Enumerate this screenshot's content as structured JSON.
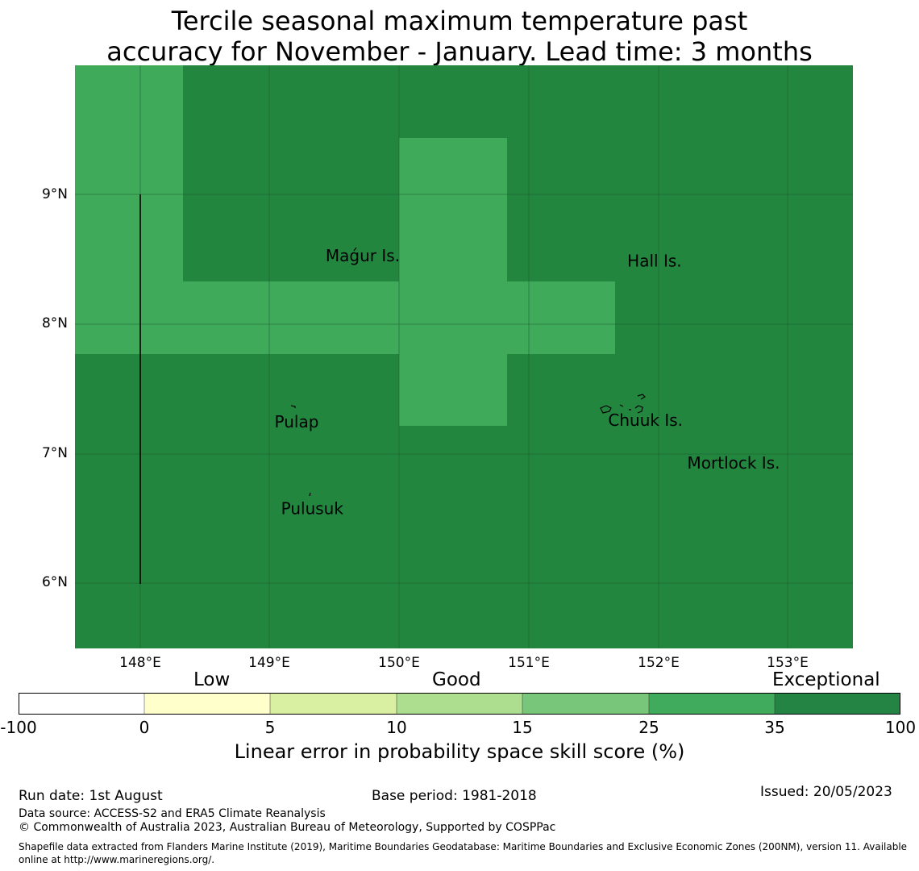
{
  "title_line1": "Tercile seasonal maximum temperature past",
  "title_line2": "accuracy for November - January. Lead time: 3 months",
  "map": {
    "lon_range": [
      147.5,
      153.5
    ],
    "lat_range": [
      5.5,
      10.0
    ],
    "colors": {
      "exceptional": "#23863f",
      "good": "#40aa5b",
      "grid": "#1a5a2c"
    },
    "y_ticks": [
      {
        "value": 9,
        "label": "9°N"
      },
      {
        "value": 8,
        "label": "8°N"
      },
      {
        "value": 7,
        "label": "7°N"
      },
      {
        "value": 6,
        "label": "6°N"
      }
    ],
    "x_ticks": [
      {
        "value": 148,
        "label": "148°E"
      },
      {
        "value": 149,
        "label": "149°E"
      },
      {
        "value": 150,
        "label": "150°E"
      },
      {
        "value": 151,
        "label": "151°E"
      },
      {
        "value": 152,
        "label": "152°E"
      },
      {
        "value": 153,
        "label": "153°E"
      }
    ],
    "places": [
      {
        "name": "Magur Is.",
        "lon": 149.72,
        "lat": 8.53
      },
      {
        "name": "Hall Is.",
        "lon": 151.97,
        "lat": 8.49
      },
      {
        "name": "Pulap",
        "lon": 149.21,
        "lat": 7.25
      },
      {
        "name": "Chuuk Is.",
        "lon": 151.9,
        "lat": 7.26
      },
      {
        "name": "Mortlock Is.",
        "lon": 152.58,
        "lat": 6.93
      },
      {
        "name": "Pulusuk",
        "lon": 149.33,
        "lat": 6.58
      }
    ]
  },
  "colorbar": {
    "categories": [
      "Low",
      "Good",
      "Exceptional"
    ],
    "ticks": [
      "-100",
      "0",
      "5",
      "10",
      "15",
      "25",
      "35",
      "100"
    ],
    "colors": [
      "#ffffff",
      "#ffffcc",
      "#d9f0a3",
      "#addd8e",
      "#78c679",
      "#41ab5d",
      "#238443"
    ],
    "label": "Linear error in probability space skill score (%)"
  },
  "footer": {
    "run_date": "Run date: 1st August",
    "base_period": "Base period: 1981-2018",
    "issued": "Issued: 20/05/2023",
    "data_source": "Data source: ACCESS-S2 and ERA5 Climate Reanalysis",
    "copyright": "© Commonwealth of Australia 2023, Australian Bureau of Meteorology, Supported by COSPPac",
    "shapefile": "Shapefile data extracted from Flanders Marine Institute (2019), Maritime Boundaries Geodatabase: Maritime Boundaries and Exclusive Economic Zones (200NM), version 11. Available online at http://www.marineregions.org/."
  }
}
